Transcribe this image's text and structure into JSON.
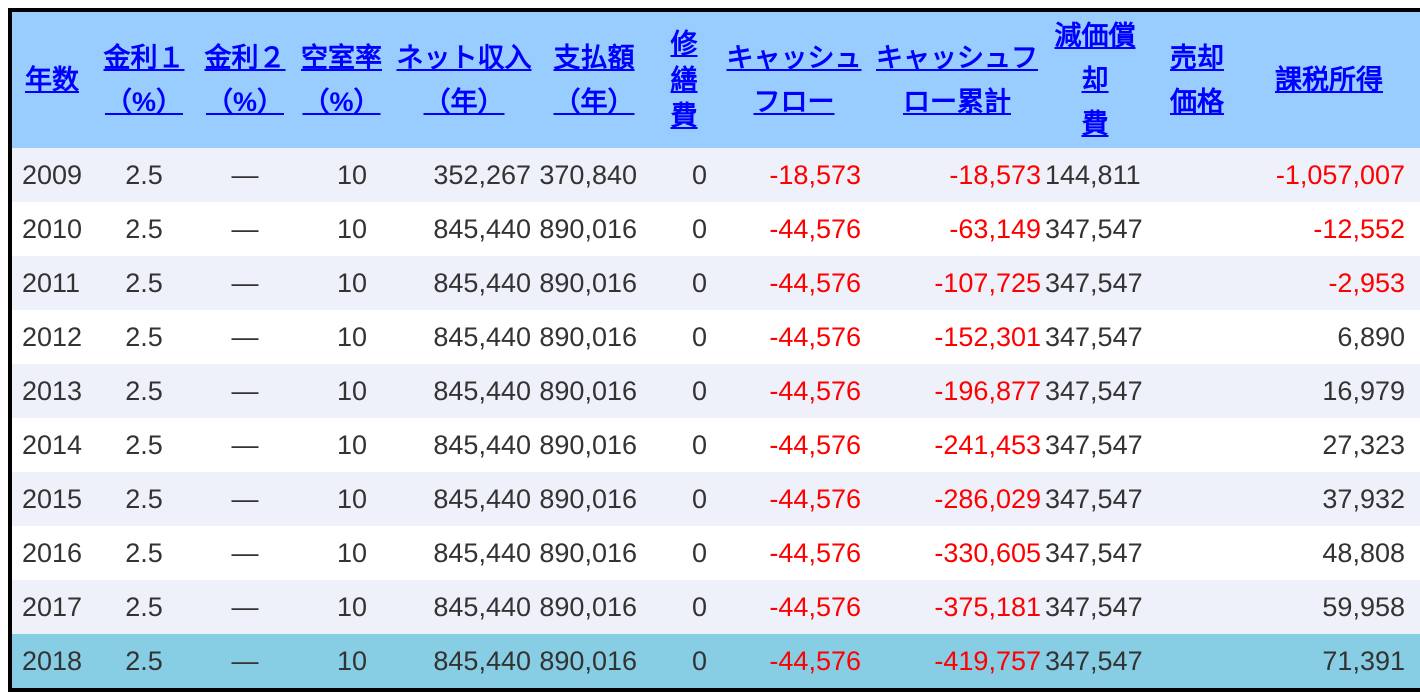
{
  "table": {
    "selected_year": "2018",
    "columns": [
      {
        "id": "year",
        "label": "年数"
      },
      {
        "id": "rate1",
        "label": "金利１\n（%）"
      },
      {
        "id": "rate2",
        "label": "金利２\n（%）"
      },
      {
        "id": "vacancy_rate",
        "label": "空室率\n（%）"
      },
      {
        "id": "net_income_year",
        "label": "ネット収入\n（年）"
      },
      {
        "id": "payment_year",
        "label": "支払額\n（年）"
      },
      {
        "id": "repair_cost",
        "label": "修\n繕\n費",
        "vertical": true
      },
      {
        "id": "cashflow",
        "label": "キャッシュ\nフロー"
      },
      {
        "id": "cashflow_cum",
        "label": "キャッシュフ\nロー累計"
      },
      {
        "id": "depreciation",
        "label": "減価償却\n費"
      },
      {
        "id": "sale_price",
        "label": "売却\n価格"
      },
      {
        "id": "taxable_income",
        "label": "課税所得"
      }
    ],
    "rows": [
      {
        "cells": [
          "2009",
          "2.5",
          "―",
          "10",
          "352,267",
          "370,840",
          "0",
          "-18,573",
          "-18,573",
          "144,811",
          "",
          "-1,057,007"
        ]
      },
      {
        "cells": [
          "2010",
          "2.5",
          "―",
          "10",
          "845,440",
          "890,016",
          "0",
          "-44,576",
          "-63,149",
          "347,547",
          "",
          "-12,552"
        ]
      },
      {
        "cells": [
          "2011",
          "2.5",
          "―",
          "10",
          "845,440",
          "890,016",
          "0",
          "-44,576",
          "-107,725",
          "347,547",
          "",
          "-2,953"
        ]
      },
      {
        "cells": [
          "2012",
          "2.5",
          "―",
          "10",
          "845,440",
          "890,016",
          "0",
          "-44,576",
          "-152,301",
          "347,547",
          "",
          "6,890"
        ]
      },
      {
        "cells": [
          "2013",
          "2.5",
          "―",
          "10",
          "845,440",
          "890,016",
          "0",
          "-44,576",
          "-196,877",
          "347,547",
          "",
          "16,979"
        ]
      },
      {
        "cells": [
          "2014",
          "2.5",
          "―",
          "10",
          "845,440",
          "890,016",
          "0",
          "-44,576",
          "-241,453",
          "347,547",
          "",
          "27,323"
        ]
      },
      {
        "cells": [
          "2015",
          "2.5",
          "―",
          "10",
          "845,440",
          "890,016",
          "0",
          "-44,576",
          "-286,029",
          "347,547",
          "",
          "37,932"
        ]
      },
      {
        "cells": [
          "2016",
          "2.5",
          "―",
          "10",
          "845,440",
          "890,016",
          "0",
          "-44,576",
          "-330,605",
          "347,547",
          "",
          "48,808"
        ]
      },
      {
        "cells": [
          "2017",
          "2.5",
          "―",
          "10",
          "845,440",
          "890,016",
          "0",
          "-44,576",
          "-375,181",
          "347,547",
          "",
          "59,958"
        ]
      },
      {
        "cells": [
          "2018",
          "2.5",
          "―",
          "10",
          "845,440",
          "890,016",
          "0",
          "-44,576",
          "-419,757",
          "347,547",
          "",
          "71,391"
        ]
      }
    ]
  },
  "colors": {
    "header_bg": "#99ccff",
    "header_link": "#0000ff",
    "row_bg": "#ffffff",
    "row_alt_bg": "#eef1f9",
    "selected_row_bg": "#87cde4",
    "text": "#333333",
    "negative_text": "#ff0000",
    "border": "#000000"
  }
}
